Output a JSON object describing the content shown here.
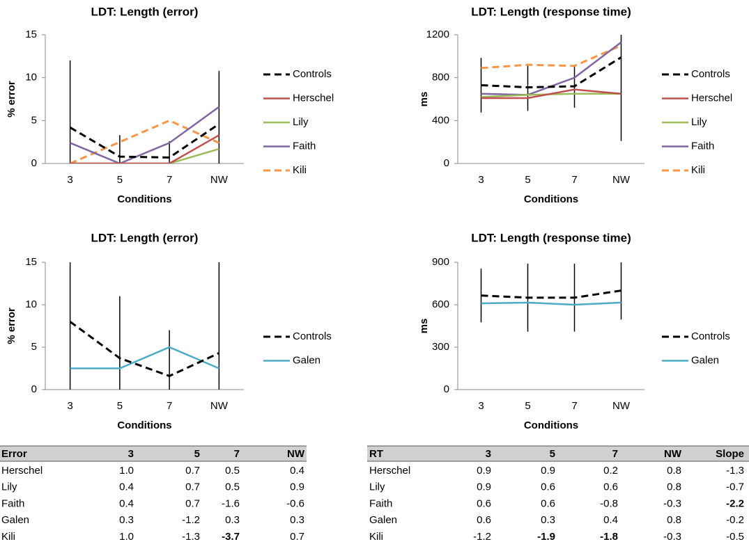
{
  "chart_data": [
    {
      "type": "line",
      "title": "LDT: Length (error)",
      "xlabel": "Conditions",
      "ylabel": "% error",
      "categories": [
        "3",
        "5",
        "7",
        "NW"
      ],
      "ylim": [
        0,
        15
      ],
      "yticks": [
        0,
        5,
        10,
        15
      ],
      "series": [
        {
          "name": "Controls",
          "color": "#000000",
          "dashed": true,
          "values": [
            4.2,
            0.8,
            0.7,
            4.6
          ],
          "errors": [
            7.8,
            2.5,
            1.9,
            6.2
          ]
        },
        {
          "name": "Herschel",
          "color": "#c0504d",
          "dashed": false,
          "values": [
            0,
            0,
            0,
            3.3
          ]
        },
        {
          "name": "Lily",
          "color": "#9bbb59",
          "dashed": false,
          "values": [
            0,
            0,
            0,
            1.7
          ]
        },
        {
          "name": "Faith",
          "color": "#8064a2",
          "dashed": false,
          "values": [
            2.4,
            0,
            2.4,
            6.6
          ]
        },
        {
          "name": "Kili",
          "color": "#f79646",
          "dashed": true,
          "values": [
            0,
            2.5,
            5.0,
            2.4
          ]
        }
      ]
    },
    {
      "type": "line",
      "title": "LDT: Length (response time)",
      "xlabel": "Conditions",
      "ylabel": "ms",
      "categories": [
        "3",
        "5",
        "7",
        "NW"
      ],
      "ylim": [
        0,
        1200
      ],
      "yticks": [
        0,
        400,
        800,
        1200
      ],
      "series": [
        {
          "name": "Controls",
          "color": "#000000",
          "dashed": true,
          "values": [
            730,
            710,
            720,
            990
          ],
          "errors": [
            255,
            220,
            200,
            780
          ]
        },
        {
          "name": "Herschel",
          "color": "#c0504d",
          "dashed": false,
          "values": [
            610,
            610,
            690,
            650
          ]
        },
        {
          "name": "Lily",
          "color": "#9bbb59",
          "dashed": false,
          "values": [
            620,
            640,
            650,
            650
          ]
        },
        {
          "name": "Faith",
          "color": "#8064a2",
          "dashed": false,
          "values": [
            650,
            640,
            800,
            1130
          ]
        },
        {
          "name": "Kili",
          "color": "#f79646",
          "dashed": true,
          "values": [
            890,
            920,
            910,
            1100
          ]
        }
      ]
    },
    {
      "type": "line",
      "title": "LDT: Length (error)",
      "xlabel": "Conditions",
      "ylabel": "% error",
      "categories": [
        "3",
        "5",
        "7",
        "NW"
      ],
      "ylim": [
        0,
        15
      ],
      "yticks": [
        0,
        5,
        10,
        15
      ],
      "series": [
        {
          "name": "Controls",
          "color": "#000000",
          "dashed": true,
          "values": [
            8.0,
            3.7,
            1.6,
            4.3
          ],
          "errors": [
            8.0,
            7.3,
            5.4,
            10.7
          ]
        },
        {
          "name": "Galen",
          "color": "#4bacc6",
          "dashed": false,
          "values": [
            2.5,
            2.5,
            5.0,
            2.5
          ]
        }
      ]
    },
    {
      "type": "line",
      "title": "LDT: Length (response time)",
      "xlabel": "Conditions",
      "ylabel": "ms",
      "categories": [
        "3",
        "5",
        "7",
        "NW"
      ],
      "ylim": [
        0,
        900
      ],
      "yticks": [
        0,
        300,
        600,
        900
      ],
      "series": [
        {
          "name": "Controls",
          "color": "#000000",
          "dashed": true,
          "values": [
            665,
            650,
            650,
            700
          ],
          "errors": [
            190,
            240,
            240,
            205
          ]
        },
        {
          "name": "Galen",
          "color": "#4bacc6",
          "dashed": false,
          "values": [
            610,
            615,
            600,
            615
          ]
        }
      ]
    }
  ],
  "tables": [
    {
      "header": [
        "Error",
        "3",
        "5",
        "7",
        "NW"
      ],
      "rows": [
        [
          "Herschel",
          "1.0",
          "0.7",
          "0.5",
          "0.4"
        ],
        [
          "Lily",
          "0.4",
          "0.7",
          "0.5",
          "0.9"
        ],
        [
          "Faith",
          "0.4",
          "0.7",
          "-1.6",
          "-0.6"
        ],
        [
          "Galen",
          "0.3",
          "-1.2",
          "0.3",
          "0.3"
        ],
        [
          "Kili",
          "1.0",
          "-1.3",
          "-3.7",
          "0.7"
        ]
      ],
      "bold_cells": [
        [
          4,
          3
        ]
      ]
    },
    {
      "header": [
        "RT",
        "3",
        "5",
        "7",
        "NW",
        "Slope"
      ],
      "rows": [
        [
          "Herschel",
          "0.9",
          "0.9",
          "0.2",
          "0.8",
          "-1.3"
        ],
        [
          "Lily",
          "0.9",
          "0.6",
          "0.6",
          "0.8",
          "-0.7"
        ],
        [
          "Faith",
          "0.6",
          "0.6",
          "-0.8",
          "-0.3",
          "-2.2"
        ],
        [
          "Galen",
          "0.6",
          "0.3",
          "0.4",
          "0.8",
          "-0.2"
        ],
        [
          "Kili",
          "-1.2",
          "-1.9",
          "-1.8",
          "-0.3",
          "-0.5"
        ]
      ],
      "bold_cells": [
        [
          2,
          5
        ],
        [
          4,
          2
        ],
        [
          4,
          3
        ]
      ]
    }
  ]
}
